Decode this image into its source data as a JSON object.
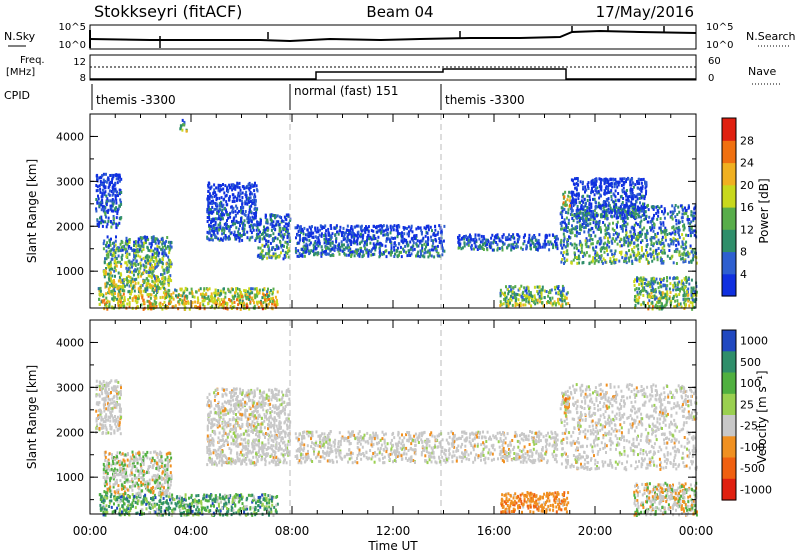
{
  "header": {
    "station": "Stokkseyri (fitACF)",
    "beam": "Beam 04",
    "date": "17/May/2016"
  },
  "aux_panels": {
    "nsky_label": "N.Sky",
    "nsky_ticks": [
      "10^5",
      "10^0"
    ],
    "nsearch_label": "N.Search",
    "nsearch_ticks": [
      "10^5",
      "10^0"
    ],
    "freq_label_top": "Freq.",
    "freq_label_unit": "[MHz]",
    "freq_ticks": [
      "12",
      "8"
    ],
    "nave_label": "Nave",
    "nave_ticks": [
      "60",
      "0"
    ],
    "cpid_label": "CPID",
    "cpid_modes": [
      "themis -3300",
      "normal (fast) 151",
      "themis -3300"
    ]
  },
  "chart_data": [
    {
      "type": "heatmap",
      "name": "power",
      "ylabel": "Slant Range [km]",
      "ylim": [
        180,
        4500
      ],
      "y_ticks": [
        "1000",
        "2000",
        "3000",
        "4000"
      ],
      "x_ticks": [
        "00:00",
        "04:00",
        "08:00",
        "12:00",
        "16:00",
        "20:00",
        "00:00"
      ],
      "xlim": [
        "00:00",
        "24:00"
      ],
      "colorbar": {
        "label": "Power [dB]",
        "ticks": [
          "4",
          "8",
          "12",
          "16",
          "20",
          "24",
          "28"
        ],
        "colors": [
          "#1030e0",
          "#2e5fd0",
          "#2f8e6a",
          "#58ad4a",
          "#c8d81c",
          "#f0b020",
          "#f07010",
          "#e02010"
        ]
      },
      "regions": [
        {
          "t": [
            0.3,
            7.4
          ],
          "r": [
            180,
            650
          ],
          "level": 0.7
        },
        {
          "t": [
            0.5,
            3.2
          ],
          "r": [
            650,
            1800
          ],
          "level": 0.5
        },
        {
          "t": [
            0.2,
            1.2
          ],
          "r": [
            2000,
            3200
          ],
          "level": 0.2
        },
        {
          "t": [
            4.6,
            6.6
          ],
          "r": [
            1700,
            3000
          ],
          "level": 0.2
        },
        {
          "t": [
            6.6,
            7.9
          ],
          "r": [
            1300,
            2300
          ],
          "level": 0.35
        },
        {
          "t": [
            8.1,
            14.0
          ],
          "r": [
            1350,
            2050
          ],
          "level": 0.25
        },
        {
          "t": [
            14.5,
            18.5
          ],
          "r": [
            1500,
            1850
          ],
          "level": 0.25
        },
        {
          "t": [
            16.2,
            18.9
          ],
          "r": [
            250,
            700
          ],
          "level": 0.55
        },
        {
          "t": [
            18.6,
            24.0
          ],
          "r": [
            1200,
            2500
          ],
          "level": 0.4
        },
        {
          "t": [
            19.0,
            22.0
          ],
          "r": [
            2200,
            3100
          ],
          "level": 0.2
        },
        {
          "t": [
            18.7,
            19.0
          ],
          "r": [
            2450,
            2800
          ],
          "level": 0.7
        },
        {
          "t": [
            21.5,
            24.0
          ],
          "r": [
            180,
            900
          ],
          "level": 0.55
        },
        {
          "t": [
            3.5,
            3.8
          ],
          "r": [
            4150,
            4400
          ],
          "level": 0.5
        }
      ]
    },
    {
      "type": "heatmap",
      "name": "velocity",
      "ylabel": "Slant Range [km]",
      "ylim": [
        180,
        4500
      ],
      "y_ticks": [
        "1000",
        "2000",
        "3000",
        "4000"
      ],
      "x_ticks": [
        "00:00",
        "04:00",
        "08:00",
        "12:00",
        "16:00",
        "20:00",
        "00:00"
      ],
      "xlabel": "Time UT",
      "colorbar": {
        "label": "Velocity [m s⁻¹]",
        "ticks": [
          "1000",
          "500",
          "100",
          "25",
          "-25",
          "-100",
          "-500",
          "-1000"
        ],
        "colors": [
          "#2048c0",
          "#2f8e6a",
          "#50b040",
          "#9ad050",
          "#c8c8c8",
          "#f09020",
          "#f06010",
          "#e02010"
        ]
      },
      "regions": [
        {
          "t": [
            0.3,
            7.4
          ],
          "r": [
            180,
            650
          ],
          "class": "mixed-green"
        },
        {
          "t": [
            0.5,
            3.2
          ],
          "r": [
            650,
            1600
          ],
          "class": "grey-green"
        },
        {
          "t": [
            0.2,
            1.2
          ],
          "r": [
            2000,
            3200
          ],
          "class": "grey"
        },
        {
          "t": [
            4.6,
            7.9
          ],
          "r": [
            1300,
            3000
          ],
          "class": "grey"
        },
        {
          "t": [
            8.1,
            18.5
          ],
          "r": [
            1350,
            2050
          ],
          "class": "grey"
        },
        {
          "t": [
            16.2,
            18.9
          ],
          "r": [
            250,
            700
          ],
          "class": "orange"
        },
        {
          "t": [
            18.7,
            19.0
          ],
          "r": [
            2450,
            2800
          ],
          "class": "orange"
        },
        {
          "t": [
            18.6,
            24.0
          ],
          "r": [
            1200,
            3100
          ],
          "class": "grey"
        },
        {
          "t": [
            21.5,
            24.0
          ],
          "r": [
            180,
            900
          ],
          "class": "grey-orange"
        }
      ]
    }
  ]
}
